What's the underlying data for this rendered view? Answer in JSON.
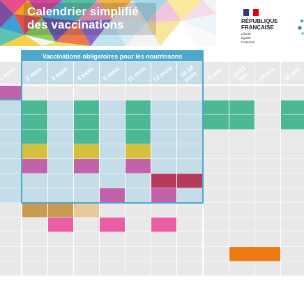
{
  "header": {
    "title_line1": "Calendrier simplifié",
    "title_line2": "des vaccinations"
  },
  "logo": {
    "line1": "RÉPUBLIQUE",
    "line2": "FRANÇAISE",
    "motto": [
      "Liberté",
      "Égalité",
      "Fraternité"
    ]
  },
  "table": {
    "mandatory_banner": "Vaccinations obligatoires pour les nourrissons",
    "age_columns": [
      "1 mois",
      "2 mois",
      "3 mois",
      "4 mois",
      "5 mois",
      "11 mois",
      "12 mois",
      "16-18 mois",
      "6 ans",
      "11-13 ans",
      "14 ans",
      "25 ans"
    ],
    "rows_visible": 13
  },
  "colors": {
    "teal": "#4db896",
    "yellow": "#d4c03a",
    "purple": "#c162aa",
    "magenta": "#c7509a",
    "crimson": "#b53a5e",
    "ochre": "#c99a52",
    "beige": "#e8c99e",
    "pink": "#ec5ea4",
    "orange": "#ee7a12",
    "highlight_bg": "#c4dde8",
    "highlight_border": "#4da8c9",
    "cell_bg": "#e9e9e9"
  }
}
